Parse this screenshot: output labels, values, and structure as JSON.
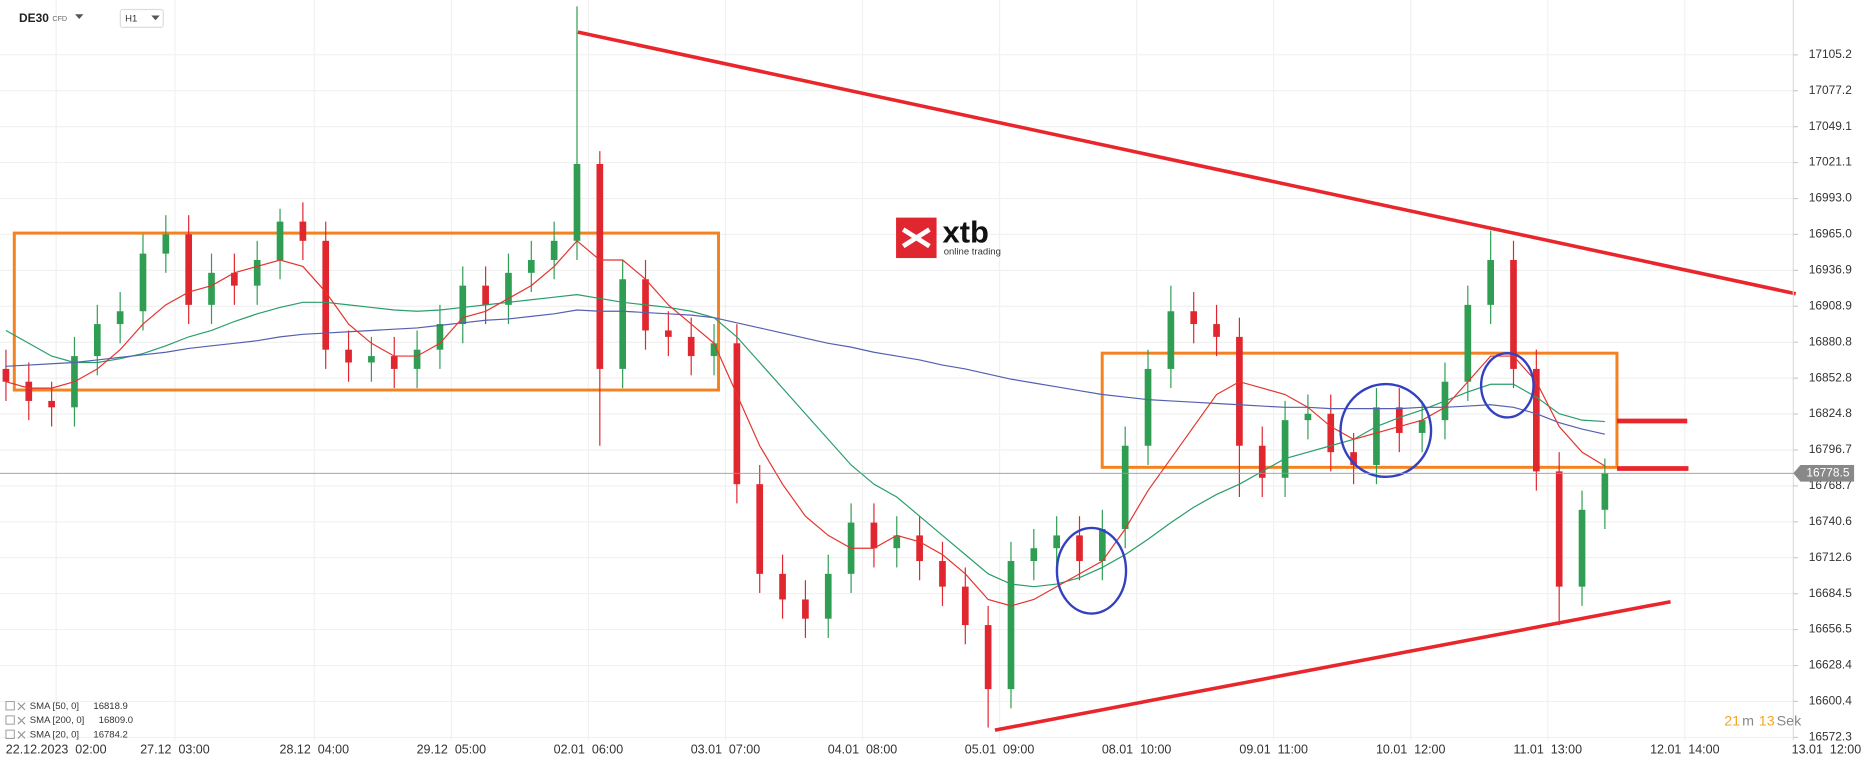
{
  "header": {
    "symbol": "DE30",
    "instrument_type": "CFD",
    "timeframe": "H1",
    "logo": {
      "name": "xtb",
      "tagline": "online trading"
    },
    "timer": {
      "minutes": 21,
      "minutes_unit": "m",
      "seconds": 13,
      "seconds_unit": "Sek"
    }
  },
  "chart_data": {
    "type": "candlestick",
    "x": [
      0,
      1,
      2,
      3,
      4,
      5,
      6,
      7,
      8,
      9,
      10,
      11,
      12,
      13,
      14,
      15,
      16,
      17,
      18,
      19,
      20,
      21,
      22,
      23,
      24,
      25,
      26,
      27,
      28,
      29,
      30,
      31,
      32,
      33,
      34,
      35,
      36,
      37,
      38,
      39,
      40,
      41,
      42,
      43,
      44,
      45,
      46,
      47,
      48,
      49,
      50,
      51,
      52,
      53,
      54,
      55,
      56,
      57,
      58,
      59,
      60,
      61,
      62,
      63,
      64,
      65,
      66,
      67,
      68,
      69,
      70
    ],
    "open": [
      16860,
      16850,
      16835,
      16830,
      16870,
      16895,
      16905,
      16950,
      16965,
      16910,
      16935,
      16925,
      16945,
      16975,
      16960,
      16875,
      16865,
      16870,
      16860,
      16875,
      16895,
      16925,
      16910,
      16935,
      16945,
      16960,
      17020,
      16860,
      16930,
      16890,
      16885,
      16870,
      16880,
      16770,
      16700,
      16680,
      16665,
      16700,
      16740,
      16720,
      16730,
      16710,
      16690,
      16660,
      16610,
      16710,
      16720,
      16730,
      16710,
      16735,
      16800,
      16860,
      16905,
      16895,
      16885,
      16800,
      16775,
      16820,
      16825,
      16795,
      16785,
      16830,
      16810,
      16820,
      16850,
      16910,
      16945,
      16860,
      16780,
      16690,
      16750
    ],
    "high": [
      16875,
      16865,
      16850,
      16885,
      16910,
      16920,
      16965,
      16980,
      16980,
      16950,
      16950,
      16960,
      16985,
      16990,
      16975,
      16890,
      16885,
      16885,
      16890,
      16910,
      16940,
      16940,
      16950,
      16960,
      16975,
      17143,
      17030,
      16945,
      16945,
      16905,
      16900,
      16895,
      16895,
      16785,
      16715,
      16695,
      16715,
      16755,
      16755,
      16745,
      16745,
      16725,
      16705,
      16675,
      16725,
      16735,
      16745,
      16745,
      16750,
      16815,
      16875,
      16925,
      16920,
      16910,
      16900,
      16815,
      16835,
      16840,
      16840,
      16810,
      16845,
      16845,
      16835,
      16865,
      16925,
      16968,
      16960,
      16875,
      16795,
      16765,
      16790
    ],
    "low": [
      16835,
      16820,
      16815,
      16815,
      16855,
      16880,
      16890,
      16935,
      16895,
      16895,
      16910,
      16910,
      16930,
      16945,
      16860,
      16850,
      16850,
      16845,
      16845,
      16860,
      16880,
      16895,
      16895,
      16920,
      16930,
      16945,
      16800,
      16845,
      16875,
      16870,
      16855,
      16855,
      16755,
      16685,
      16665,
      16650,
      16650,
      16685,
      16705,
      16705,
      16695,
      16675,
      16645,
      16580,
      16595,
      16695,
      16705,
      16695,
      16695,
      16720,
      16785,
      16845,
      16880,
      16870,
      16760,
      16760,
      16760,
      16805,
      16780,
      16770,
      16770,
      16795,
      16795,
      16805,
      16835,
      16895,
      16845,
      16765,
      16660,
      16675,
      16735
    ],
    "close": [
      16850,
      16835,
      16830,
      16870,
      16895,
      16905,
      16950,
      16965,
      16910,
      16935,
      16925,
      16945,
      16975,
      16960,
      16875,
      16865,
      16870,
      16860,
      16875,
      16895,
      16925,
      16910,
      16935,
      16945,
      16960,
      17020,
      16860,
      16930,
      16890,
      16885,
      16870,
      16880,
      16770,
      16700,
      16680,
      16665,
      16700,
      16740,
      16720,
      16730,
      16710,
      16690,
      16660,
      16610,
      16710,
      16720,
      16730,
      16710,
      16735,
      16800,
      16860,
      16905,
      16895,
      16885,
      16800,
      16775,
      16820,
      16825,
      16795,
      16785,
      16830,
      16810,
      16820,
      16850,
      16910,
      16945,
      16860,
      16780,
      16690,
      16750,
      16778.5
    ],
    "up_color": "#2f9e53",
    "down_color": "#e0262e",
    "series": [
      {
        "name": "SMA [50, 0]",
        "color": "#2a9d6a",
        "values": [
          16890,
          16880,
          16870,
          16865,
          16865,
          16868,
          16872,
          16878,
          16885,
          16890,
          16897,
          16903,
          16908,
          16912,
          16912,
          16910,
          16908,
          16906,
          16905,
          16906,
          16908,
          16910,
          16912,
          16914,
          16916,
          16918,
          16915,
          16912,
          16910,
          16908,
          16905,
          16900,
          16885,
          16865,
          16845,
          16825,
          16805,
          16785,
          16770,
          16760,
          16745,
          16730,
          16715,
          16700,
          16692,
          16690,
          16692,
          16697,
          16705,
          16715,
          16727,
          16740,
          16752,
          16762,
          16770,
          16780,
          16790,
          16795,
          16800,
          16805,
          16815,
          16822,
          16828,
          16835,
          16842,
          16848,
          16848,
          16838,
          16825,
          16820,
          16818.9
        ]
      },
      {
        "name": "SMA [200, 0]",
        "color": "#5560b0",
        "values": [
          16862,
          16863,
          16864,
          16865,
          16867,
          16869,
          16871,
          16873,
          16876,
          16878,
          16880,
          16882,
          16885,
          16887,
          16888,
          16889,
          16890,
          16891,
          16892,
          16894,
          16896,
          16898,
          16899,
          16901,
          16903,
          16906,
          16905,
          16905,
          16904,
          16903,
          16902,
          16900,
          16896,
          16892,
          16888,
          16884,
          16880,
          16877,
          16873,
          16870,
          16867,
          16863,
          16860,
          16856,
          16852,
          16849,
          16846,
          16843,
          16840,
          16838,
          16836,
          16835,
          16834,
          16833,
          16832,
          16831,
          16830,
          16830,
          16829,
          16829,
          16829,
          16829,
          16830,
          16830,
          16831,
          16832,
          16830,
          16825,
          16818,
          16813,
          16809
        ],
        "value_labels": [
          null,
          null,
          null,
          null,
          null,
          null,
          null,
          null,
          null,
          null,
          null,
          null,
          null,
          null,
          null,
          null,
          null,
          null,
          null,
          null,
          null,
          null,
          null,
          null,
          null,
          null,
          null,
          null,
          null,
          null,
          null,
          null,
          null,
          null,
          null,
          null,
          null,
          null,
          null,
          null,
          null,
          null,
          null,
          null,
          null,
          null,
          null,
          null,
          null,
          null,
          null,
          null,
          null,
          null,
          null,
          null,
          null,
          null,
          null,
          null,
          null,
          null,
          null,
          null,
          null,
          null,
          null,
          null,
          null,
          null,
          "16809.0"
        ]
      },
      {
        "name": "SMA [20, 0]",
        "color": "#e3342f",
        "values": [
          16850,
          16845,
          16845,
          16850,
          16860,
          16875,
          16895,
          16910,
          16920,
          16925,
          16935,
          16940,
          16945,
          16940,
          16920,
          16895,
          16880,
          16870,
          16870,
          16880,
          16900,
          16905,
          16915,
          16925,
          16940,
          16960,
          16945,
          16945,
          16930,
          16910,
          16895,
          16880,
          16840,
          16800,
          16770,
          16745,
          16730,
          16720,
          16720,
          16730,
          16725,
          16715,
          16700,
          16680,
          16675,
          16680,
          16690,
          16700,
          16710,
          16735,
          16765,
          16790,
          16815,
          16840,
          16850,
          16845,
          16840,
          16830,
          16815,
          16805,
          16810,
          16815,
          16820,
          16830,
          16850,
          16870,
          16870,
          16850,
          16815,
          16795,
          16784.2
        ]
      }
    ],
    "current_price": 16778.5,
    "xlim": [
      -0.26,
      78.25
    ],
    "xticks": [
      {
        "value": 2.2,
        "label": "22.12.2023  02:00"
      },
      {
        "value": 7.4,
        "label": "27.12  03:00"
      },
      {
        "value": 13.5,
        "label": "28.12  04:00"
      },
      {
        "value": 19.5,
        "label": "29.12  05:00"
      },
      {
        "value": 25.5,
        "label": "02.01  06:00"
      },
      {
        "value": 31.5,
        "label": "03.01  07:00"
      },
      {
        "value": 37.5,
        "label": "04.01  08:00"
      },
      {
        "value": 43.5,
        "label": "05.01  09:00"
      },
      {
        "value": 49.5,
        "label": "08.01  10:00"
      },
      {
        "value": 55.5,
        "label": "09.01  11:00"
      },
      {
        "value": 61.5,
        "label": "10.01  12:00"
      },
      {
        "value": 67.5,
        "label": "11.01  13:00"
      },
      {
        "value": 73.5,
        "label": "12.01  14:00"
      },
      {
        "value": 79.7,
        "label": "13.01  12:00"
      }
    ],
    "ylim": [
      16570,
      17148
    ],
    "yticks": [
      17105.2,
      17077.2,
      17049.1,
      17021.1,
      {
        "value": 16993,
        "label": "16993.0"
      },
      {
        "value": 16965,
        "label": "16965.0"
      },
      16936.9,
      16908.9,
      16880.8,
      16852.8,
      16824.8,
      16796.7,
      16768.7,
      16740.6,
      16712.6,
      16684.5,
      16656.5,
      16628.4,
      16600.4,
      16572.3
    ],
    "grid": true
  }
}
